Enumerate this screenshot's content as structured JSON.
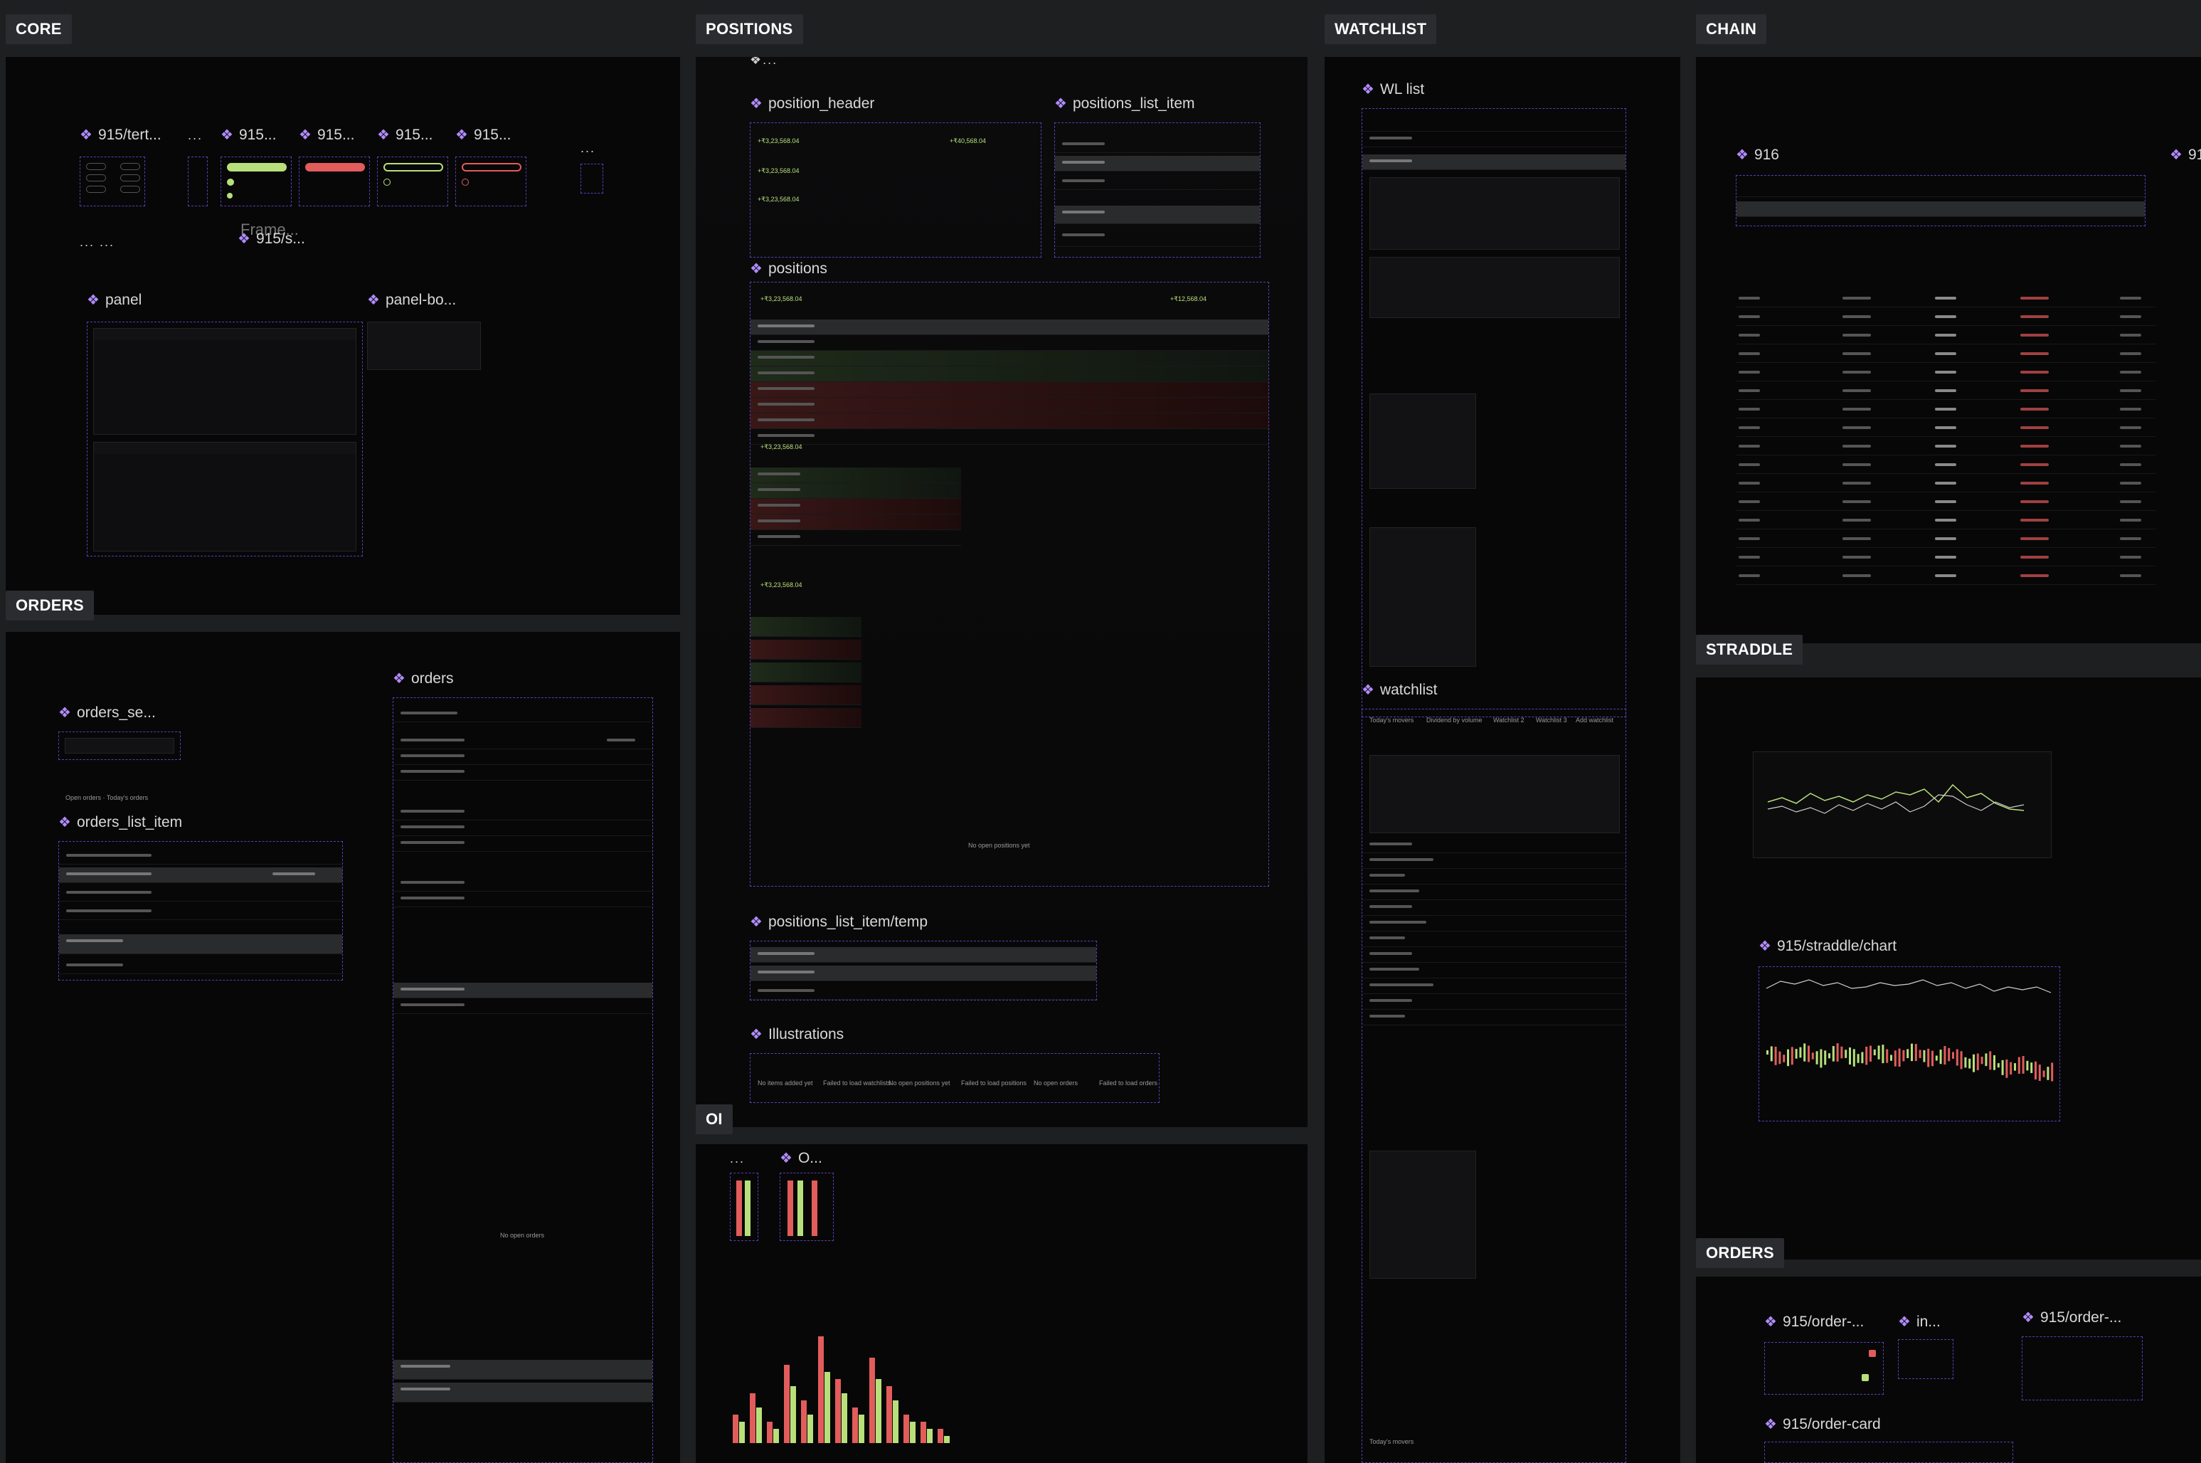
{
  "sections": {
    "core": "CORE",
    "orders_left": "ORDERS",
    "positions": "POSITIONS",
    "oi": "OI",
    "watchlist": "WATCHLIST",
    "chain": "CHAIN",
    "straddle": "STRADDLE",
    "orders_right": "ORDERS"
  },
  "core": {
    "comp_tert": "915/tert...",
    "comp_1": "915...",
    "comp_2": "915...",
    "comp_3": "915...",
    "comp_4": "915...",
    "frame_label": "Frame...",
    "comp_s": "915/s...",
    "panel": "panel",
    "panel_bo": "panel-bo..."
  },
  "orders": {
    "orders_se": "orders_se...",
    "orders_list_item": "orders_list_item",
    "orders": "orders",
    "no_orders": "No open orders"
  },
  "positions": {
    "position_header": "position_header",
    "positions_list_item": "positions_list_item",
    "positions": "positions",
    "amount": "+₹3,23,568.04",
    "amount2": "+₹40,568.04",
    "amount3": "+₹12,568.04",
    "no_positions": "No open positions yet",
    "temp": "positions_list_item/temp",
    "illustrations": "Illustrations",
    "illus": [
      "No items added yet",
      "Failed to load watchlists",
      "No open positions yet",
      "Failed to load positions",
      "No open orders",
      "Failed to load orders"
    ]
  },
  "oi": {
    "comp_o": "O...",
    "dots": "..."
  },
  "watchlist": {
    "wl_list": "WL list",
    "watchlist": "watchlist",
    "tabs": [
      "Today's movers",
      "Dividend by volume",
      "Watchlist 2",
      "Watchlist 3",
      "Add watchlist"
    ]
  },
  "chain": {
    "comp_916": "916",
    "comp_91": "91"
  },
  "straddle": {
    "chart": "915/straddle/chart"
  },
  "orders_right": {
    "order_a": "915/order-...",
    "in": "in...",
    "order_b": "915/order-...",
    "order_card": "915/order-card"
  }
}
